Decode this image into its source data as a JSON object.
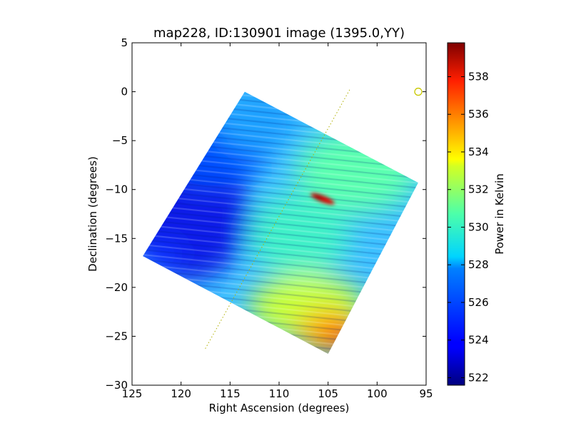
{
  "chart_data": {
    "type": "heatmap",
    "title": "map228, ID:130901 image (1395.0,YY)",
    "xlabel": "Right Ascension (degrees)",
    "ylabel": "Declination (degrees)",
    "xlim": [
      125,
      95
    ],
    "ylim": [
      -30,
      5
    ],
    "x_ticks": [
      125,
      120,
      115,
      110,
      105,
      100,
      95
    ],
    "y_ticks": [
      5,
      0,
      -5,
      -10,
      -15,
      -20,
      -25,
      -30
    ],
    "x_tick_labels": [
      "125",
      "120",
      "115",
      "110",
      "105",
      "100",
      "95"
    ],
    "y_tick_labels": [
      "5",
      "0",
      "−5",
      "−10",
      "−15",
      "−20",
      "−25",
      "−30"
    ],
    "map_corners": [
      [
        113.5,
        0.0
      ],
      [
        95.8,
        -9.3
      ],
      [
        105.0,
        -26.8
      ],
      [
        123.9,
        -16.8
      ]
    ],
    "hot_spot": {
      "ra": 106.0,
      "dec": -10.8,
      "value": 539
    },
    "guide_line": {
      "start": [
        102.8,
        0.2
      ],
      "end": [
        117.6,
        -26.4
      ],
      "color": "#b0b000"
    },
    "marker": {
      "ra": 95.8,
      "dec": 0.0,
      "shape": "open-circle",
      "color": "#c8c800"
    },
    "colorbar": {
      "label": "Power in Kelvin",
      "vmin": 521.6,
      "vmax": 539.8,
      "ticks": [
        522,
        524,
        526,
        528,
        530,
        532,
        534,
        536,
        538
      ],
      "tick_labels": [
        "522",
        "524",
        "526",
        "528",
        "530",
        "532",
        "534",
        "536",
        "538"
      ],
      "colormap": "jet"
    }
  }
}
